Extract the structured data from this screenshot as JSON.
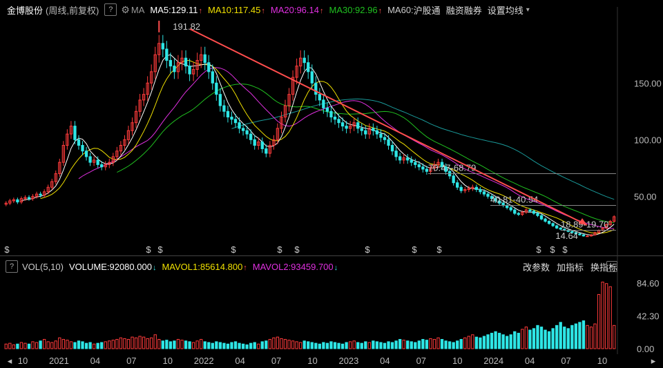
{
  "header": {
    "stock_name": "金博股份",
    "period_label": "(周线,前复权)",
    "help_label": "?",
    "ma_label": "MA",
    "ma": [
      {
        "label": "MA5:129.11",
        "color": "#ffffff"
      },
      {
        "label": "MA10:117.45",
        "color": "#f0e000"
      },
      {
        "label": "MA20:96.14",
        "color": "#e030e0"
      },
      {
        "label": "MA30:92.96",
        "color": "#20c020"
      },
      {
        "label": "MA60:",
        "color": "#cccccc"
      }
    ],
    "menu": [
      "沪股通",
      "融资融券",
      "设置均线"
    ],
    "dropdown": "▾"
  },
  "volume_header": {
    "help_label": "?",
    "title": "VOL(5,10)",
    "items": [
      {
        "label": "VOLUME:92080.000",
        "color": "#ffffff",
        "arrow": "↓"
      },
      {
        "label": "MAVOL1:85614.800",
        "color": "#f0e000",
        "arrow": "↑"
      },
      {
        "label": "MAVOL2:93459.700",
        "color": "#e030e0",
        "arrow": "↓"
      }
    ],
    "buttons": [
      "改参数",
      "加指标",
      "换指标"
    ],
    "close": "×"
  },
  "colors": {
    "up": "#ff3b3b",
    "down": "#2ee6e6",
    "ma5": "#ffffff",
    "ma10": "#f0e000",
    "ma20": "#e030e0",
    "ma30": "#20c020",
    "ma60": "#1a9a9a",
    "trend": "#ff4d4d"
  },
  "chart_data": {
    "type": "candlestick",
    "y_ticks": [
      150.0,
      100.0,
      50.0
    ],
    "y_tick_labels": [
      "150.00",
      "100.00",
      "50.00"
    ],
    "vol_ticks": [
      84.6,
      42.3,
      0.0
    ],
    "vol_tick_labels": [
      "84.60",
      "42.30",
      "0.00"
    ],
    "x_labels": [
      "10",
      "2021",
      "04",
      "07",
      "10",
      "2022",
      "04",
      "07",
      "10",
      "2023",
      "04",
      "07",
      "10",
      "2024",
      "04",
      "07",
      "10"
    ],
    "annotations": {
      "high": "191.82",
      "low": "14.64",
      "level1": "70.47-68.79",
      "level2": "40.81-40.54",
      "level3": "18.89-19.70"
    },
    "closes": [
      44,
      46,
      47,
      45,
      48,
      49,
      48,
      50,
      52,
      51,
      54,
      58,
      63,
      70,
      80,
      95,
      105,
      112,
      100,
      95,
      90,
      85,
      80,
      82,
      78,
      76,
      78,
      80,
      85,
      90,
      95,
      100,
      108,
      115,
      125,
      135,
      140,
      150,
      160,
      175,
      185,
      180,
      170,
      165,
      160,
      168,
      172,
      165,
      158,
      162,
      170,
      175,
      168,
      160,
      150,
      140,
      130,
      125,
      120,
      118,
      115,
      110,
      108,
      105,
      100,
      95,
      98,
      92,
      88,
      95,
      100,
      110,
      120,
      130,
      140,
      155,
      165,
      172,
      168,
      160,
      150,
      140,
      135,
      128,
      125,
      120,
      118,
      115,
      112,
      110,
      112,
      115,
      110,
      108,
      105,
      110,
      108,
      105,
      102,
      100,
      95,
      90,
      85,
      82,
      84,
      82,
      80,
      78,
      76,
      74,
      72,
      75,
      78,
      80,
      76,
      72,
      68,
      62,
      58,
      55,
      56,
      57,
      58,
      56,
      54,
      52,
      50,
      48,
      46,
      44,
      42,
      40,
      38,
      35,
      34,
      36,
      38,
      37,
      35,
      33,
      30,
      28,
      26,
      24,
      22,
      21,
      20,
      19,
      18,
      17,
      16,
      15,
      15,
      16,
      18,
      20,
      22,
      25,
      28,
      32
    ],
    "volumes": [
      6,
      7,
      5,
      6,
      8,
      7,
      6,
      9,
      8,
      10,
      12,
      9,
      8,
      10,
      14,
      12,
      11,
      9,
      8,
      10,
      9,
      7,
      8,
      6,
      7,
      8,
      9,
      10,
      11,
      12,
      14,
      13,
      12,
      15,
      14,
      16,
      15,
      13,
      14,
      18,
      12,
      10,
      11,
      9,
      10,
      12,
      11,
      10,
      9,
      8,
      10,
      12,
      9,
      8,
      7,
      9,
      8,
      7,
      6,
      8,
      9,
      7,
      6,
      5,
      7,
      8,
      6,
      9,
      10,
      12,
      14,
      15,
      13,
      12,
      11,
      10,
      9,
      8,
      10,
      9,
      8,
      7,
      6,
      8,
      7,
      9,
      8,
      7,
      6,
      8,
      9,
      10,
      8,
      7,
      9,
      8,
      10,
      9,
      8,
      7,
      9,
      8,
      10,
      12,
      11,
      10,
      9,
      8,
      10,
      12,
      11,
      13,
      12,
      14,
      12,
      10,
      9,
      8,
      10,
      12,
      14,
      16,
      18,
      15,
      14,
      16,
      18,
      20,
      22,
      20,
      18,
      16,
      18,
      22,
      20,
      25,
      28,
      24,
      26,
      30,
      28,
      24,
      22,
      26,
      30,
      34,
      28,
      26,
      30,
      32,
      34,
      36,
      30,
      28,
      32,
      70,
      86,
      84,
      80,
      30
    ]
  }
}
